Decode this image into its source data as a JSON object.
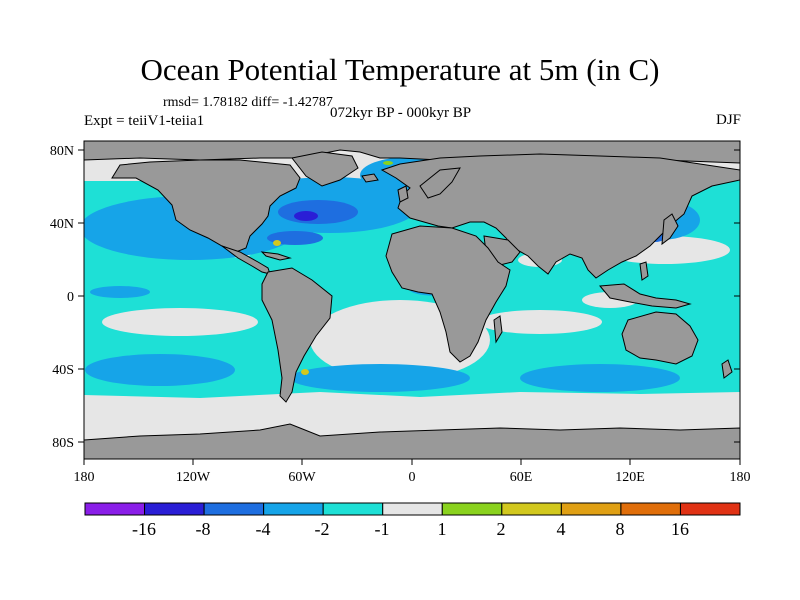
{
  "title": "Ocean Potential Temperature at 5m (in C)",
  "stats": "rmsd= 1.78182 diff= -1.42787",
  "experiment": "Expt = teiiV1-teiia1",
  "period": "072kyr BP - 000kyr BP",
  "season": "DJF",
  "axes": {
    "lat_ticks": [
      "80N",
      "40N",
      "0",
      "40S",
      "80S"
    ],
    "lon_ticks": [
      "180",
      "120W",
      "60W",
      "0",
      "60E",
      "120E",
      "180"
    ]
  },
  "colorbar": {
    "labels": [
      "-16",
      "-8",
      "-4",
      "-2",
      "-1",
      "1",
      "2",
      "4",
      "8",
      "16"
    ],
    "colors": [
      "#8a1ee8",
      "#2a1ed6",
      "#1e6ee0",
      "#16a4e8",
      "#1ee0d6",
      "#e6e6e6",
      "#8ad21e",
      "#d2c81e",
      "#e0a014",
      "#e06e0a",
      "#e03214"
    ]
  },
  "map_colors": {
    "land": "#999999",
    "near_zero": "#e6e6e6",
    "cool_1": "#1ee0d6",
    "cool_2": "#16a4e8",
    "cool_4": "#1e6ee0",
    "cool_8": "#2a1ed6"
  }
}
